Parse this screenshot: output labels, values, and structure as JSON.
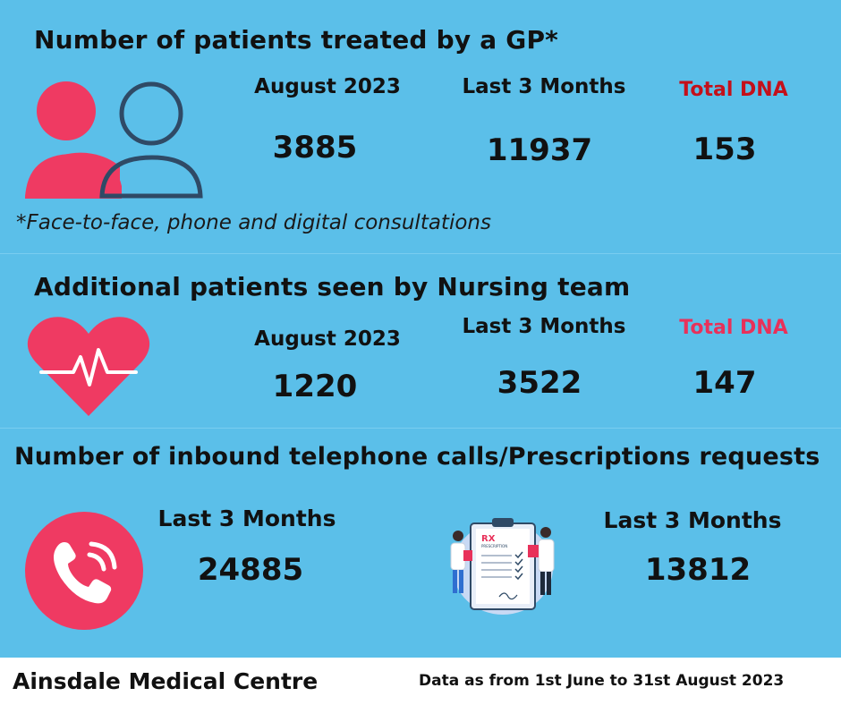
{
  "gp": {
    "title": "Number of patients treated by a GP*",
    "month_label": "August 2023",
    "month_value": "3885",
    "quarter_label": "Last 3 Months",
    "quarter_value": "11937",
    "dna_label": "Total DNA",
    "dna_value": "153",
    "note": "*Face-to-face, phone and digital consultations",
    "icon": "people-icon"
  },
  "nursing": {
    "title": "Additional patients seen by Nursing team",
    "month_label": "August 2023",
    "month_value": "1220",
    "quarter_label": "Last 3 Months",
    "quarter_value": "3522",
    "dna_label": "Total DNA",
    "dna_value": "147",
    "icon": "heartbeat-icon"
  },
  "calls": {
    "title": "Number of inbound telephone calls/Prescriptions requests",
    "phone_label": "Last 3 Months",
    "phone_value": "24885",
    "rx_label": "Last 3 Months",
    "rx_value": "13812",
    "rx_badge": "RX",
    "rx_sub": "PRESCRIPTION",
    "phone_icon": "phone-icon",
    "rx_icon": "prescription-icon"
  },
  "footer": {
    "name": "Ainsdale Medical Centre",
    "date_note": "Data as from 1st June to 31st August 2023"
  },
  "colors": {
    "background": "#5bbfe9",
    "accent_pink": "#ef3a62",
    "outline_navy": "#2f4a66",
    "dna_red": "#c4101a",
    "dna_pink": "#e8315a"
  }
}
